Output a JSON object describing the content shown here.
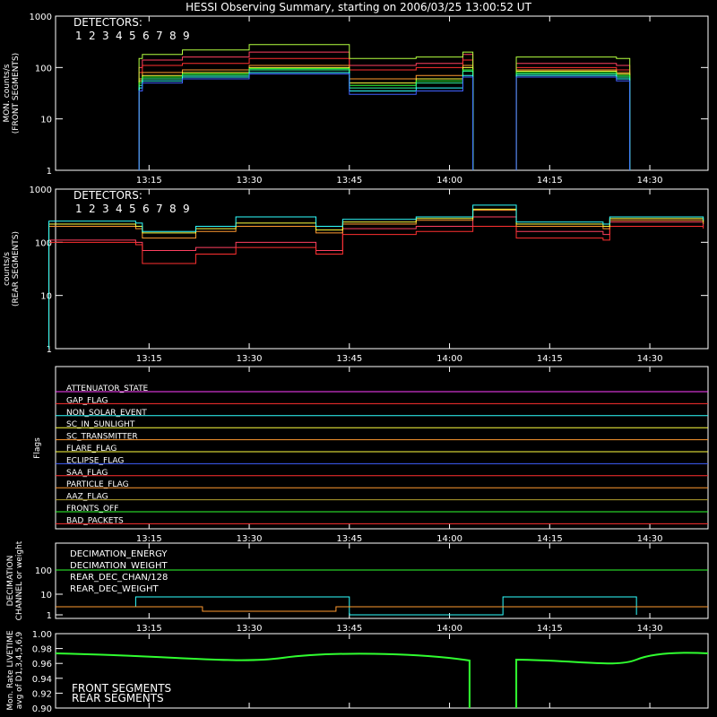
{
  "title": "HESSI Observing Summary, starting on 2006/03/25 13:00:52 UT",
  "time_ticks": [
    "13:15",
    "13:30",
    "13:45",
    "14:00",
    "14:15",
    "14:30"
  ],
  "chart_data": [
    {
      "type": "line",
      "name": "front_rates",
      "ylabel": [
        "MON. counts/s",
        "(FRONT SEGMENTS)"
      ],
      "yscale": "log",
      "ylim": [
        1,
        1000
      ],
      "yticks": [
        "1",
        "10",
        "100",
        "1000"
      ],
      "legend_title": "DETECTORS:",
      "legend_placement": "top-left",
      "detectors": [
        {
          "label": "1",
          "color": "#ff4060"
        },
        {
          "label": "2",
          "color": "#ff3030"
        },
        {
          "label": "3",
          "color": "#ff9a30"
        },
        {
          "label": "4",
          "color": "#ffff40"
        },
        {
          "label": "5",
          "color": "#b4ff40"
        },
        {
          "label": "6",
          "color": "#30ff30"
        },
        {
          "label": "7",
          "color": "#30ff9a"
        },
        {
          "label": "8",
          "color": "#30ffff"
        },
        {
          "label": "9",
          "color": "#4060ff"
        }
      ],
      "time_minutes": [
        13.5,
        14,
        20,
        30,
        45,
        55,
        62,
        63.5,
        70,
        85,
        87
      ],
      "series": [
        {
          "name": "1",
          "values": [
            100,
            140,
            160,
            200,
            110,
            120,
            180,
            null,
            120,
            110,
            null
          ]
        },
        {
          "name": "2",
          "values": [
            80,
            110,
            120,
            150,
            90,
            100,
            140,
            null,
            100,
            90,
            null
          ]
        },
        {
          "name": "3",
          "values": [
            60,
            80,
            90,
            110,
            60,
            70,
            110,
            null,
            90,
            80,
            null
          ]
        },
        {
          "name": "4",
          "values": [
            55,
            70,
            80,
            100,
            50,
            60,
            100,
            null,
            85,
            75,
            null
          ]
        },
        {
          "name": "5",
          "values": [
            150,
            180,
            220,
            280,
            150,
            160,
            200,
            null,
            160,
            150,
            null
          ]
        },
        {
          "name": "6",
          "values": [
            50,
            65,
            75,
            95,
            45,
            55,
            90,
            null,
            80,
            70,
            null
          ]
        },
        {
          "name": "7",
          "values": [
            45,
            60,
            70,
            90,
            40,
            50,
            85,
            null,
            75,
            65,
            null
          ]
        },
        {
          "name": "8",
          "values": [
            40,
            55,
            65,
            80,
            35,
            40,
            70,
            null,
            70,
            60,
            null
          ]
        },
        {
          "name": "9",
          "values": [
            35,
            50,
            60,
            75,
            30,
            35,
            65,
            null,
            65,
            55,
            null
          ]
        }
      ]
    },
    {
      "type": "line",
      "name": "rear_rates",
      "ylabel": [
        "counts/s",
        "(REAR SEGMENTS)"
      ],
      "yscale": "log",
      "ylim": [
        1,
        1000
      ],
      "yticks": [
        "1",
        "10",
        "100",
        "1000"
      ],
      "legend_title": "DETECTORS:",
      "legend_placement": "top-left",
      "time_minutes": [
        0,
        13,
        14,
        22,
        28,
        40,
        44,
        55,
        63.5,
        70,
        80,
        83,
        84,
        98
      ],
      "series": [
        {
          "name": "1",
          "values": [
            110,
            100,
            70,
            80,
            100,
            70,
            180,
            200,
            300,
            160,
            160,
            140,
            240,
            200
          ]
        },
        {
          "name": "2",
          "values": [
            100,
            90,
            40,
            60,
            80,
            60,
            140,
            160,
            200,
            120,
            120,
            110,
            200,
            180
          ]
        },
        {
          "name": "3",
          "values": [
            200,
            180,
            120,
            160,
            200,
            150,
            220,
            260,
            400,
            200,
            200,
            180,
            260,
            220
          ]
        },
        {
          "name": "4",
          "values": [
            220,
            200,
            150,
            180,
            230,
            170,
            240,
            280,
            420,
            220,
            220,
            200,
            280,
            240
          ]
        },
        {
          "name": "8",
          "values": [
            250,
            230,
            160,
            200,
            300,
            200,
            270,
            300,
            500,
            240,
            240,
            220,
            300,
            260
          ]
        }
      ]
    },
    {
      "type": "table",
      "name": "flags",
      "ylabel": "Flags",
      "rows": [
        {
          "label": "ATTENUATOR_STATE",
          "color": "#ff40ff"
        },
        {
          "label": "GAP_FLAG",
          "color": "#ff3030"
        },
        {
          "label": "NON_SOLAR_EVENT",
          "color": "#30ffff"
        },
        {
          "label": "SC_IN_SUNLIGHT",
          "color": "#ffff40"
        },
        {
          "label": "SC_TRANSMITTER",
          "color": "#ff9a30"
        },
        {
          "label": "FLARE_FLAG",
          "color": "#ffff40"
        },
        {
          "label": "ECLIPSE_FLAG",
          "color": "#4060ff"
        },
        {
          "label": "SAA_FLAG",
          "color": "#ff3030"
        },
        {
          "label": "PARTICLE_FLAG",
          "color": "#ff9a30"
        },
        {
          "label": "AAZ_FLAG",
          "color": "#b4a030"
        },
        {
          "label": "FRONTS_OFF",
          "color": "#30ff30"
        },
        {
          "label": "BAD_PACKETS",
          "color": "#ff3030"
        }
      ]
    },
    {
      "type": "line",
      "name": "decimation",
      "ylabel": [
        "DECIMATION",
        "CHANNEL or weight"
      ],
      "yscale": "log",
      "yticks": [
        "1",
        "10",
        "100"
      ],
      "legend": [
        {
          "label": "DECIMATION_ENERGY",
          "color": "#30ff30"
        },
        {
          "label": "DECIMATION_WEIGHT",
          "color": "#ff9a30"
        },
        {
          "label": "REAR_DEC_CHAN/128",
          "color": "#30ffff"
        },
        {
          "label": "REAR_DEC_WEIGHT",
          "color": "#b4a030"
        }
      ]
    },
    {
      "type": "line",
      "name": "livetime",
      "ylabel": [
        "Mon. Rate LIVETIME",
        "avg of D1,3,4,5,6,9"
      ],
      "ylim": [
        0.9,
        1.0
      ],
      "yticks": [
        "0.90",
        "0.92",
        "0.94",
        "0.96",
        "0.98",
        "1.00"
      ],
      "legend": [
        {
          "label": "FRONT SEGMENTS",
          "color": "#30ff30"
        },
        {
          "label": "REAR SEGMENTS",
          "color": "#20b020"
        }
      ]
    }
  ]
}
